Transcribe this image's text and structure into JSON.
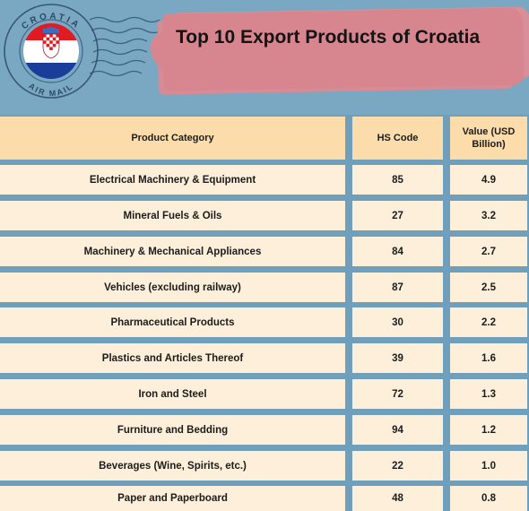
{
  "title": "Top 10 Export Products of Croatia",
  "stamp": {
    "country": "CROATIA",
    "service": "AIR MAIL"
  },
  "table": {
    "headers": [
      "Product Category",
      "HS Code",
      "Value (USD Billion)"
    ],
    "rows": [
      [
        "Electrical Machinery & Equipment",
        "85",
        "4.9"
      ],
      [
        "Mineral Fuels & Oils",
        "27",
        "3.2"
      ],
      [
        "Machinery & Mechanical Appliances",
        "84",
        "2.7"
      ],
      [
        "Vehicles (excluding railway)",
        "87",
        "2.5"
      ],
      [
        "Pharmaceutical Products",
        "30",
        "2.2"
      ],
      [
        "Plastics and Articles Thereof",
        "39",
        "1.6"
      ],
      [
        "Iron and Steel",
        "72",
        "1.3"
      ],
      [
        "Furniture and Bedding",
        "94",
        "1.2"
      ],
      [
        "Beverages (Wine, Spirits, etc.)",
        "22",
        "1.0"
      ],
      [
        "Paper and Paperboard",
        "48",
        "0.8"
      ]
    ]
  },
  "colors": {
    "background": "#6f9fbb",
    "title_highlight": "#d7868f",
    "header_cell": "#fddcab",
    "body_cell": "#fdefd9"
  }
}
